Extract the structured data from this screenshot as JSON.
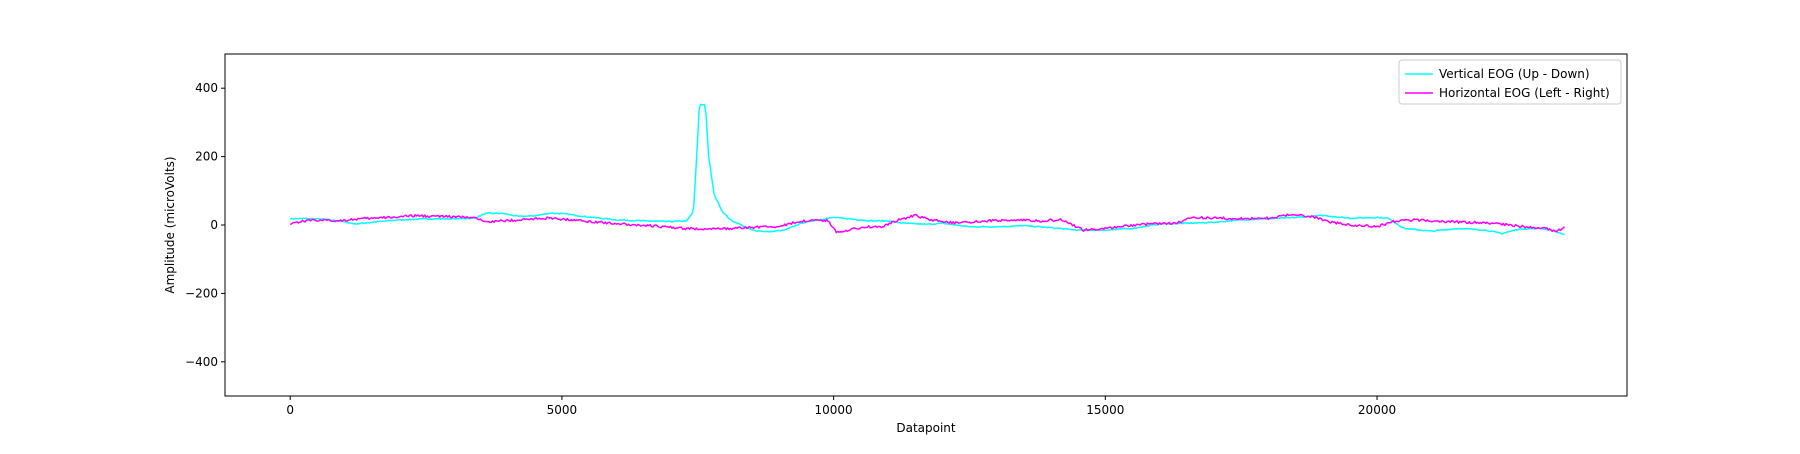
{
  "chart_data": {
    "type": "line",
    "title": "",
    "xlabel": "Datapoint",
    "ylabel": "Amplitude (microVolts)",
    "xlim": [
      -1200,
      24600
    ],
    "ylim": [
      -500,
      500
    ],
    "x_ticks": [
      0,
      5000,
      10000,
      15000,
      20000
    ],
    "y_ticks": [
      -400,
      -200,
      0,
      200,
      400
    ],
    "grid": false,
    "legend_position": "top-right",
    "series": [
      {
        "name": "Vertical EOG (Up - Down)",
        "color": "#00ffff",
        "noise": 1.5,
        "points": [
          [
            0,
            18
          ],
          [
            300,
            19
          ],
          [
            600,
            17
          ],
          [
            900,
            12
          ],
          [
            1200,
            3
          ],
          [
            1500,
            8
          ],
          [
            2000,
            15
          ],
          [
            2500,
            18
          ],
          [
            3000,
            18
          ],
          [
            3400,
            20
          ],
          [
            3600,
            34
          ],
          [
            3900,
            34
          ],
          [
            4200,
            25
          ],
          [
            4500,
            27
          ],
          [
            4800,
            35
          ],
          [
            5100,
            32
          ],
          [
            5400,
            25
          ],
          [
            6000,
            15
          ],
          [
            6500,
            12
          ],
          [
            7000,
            10
          ],
          [
            7300,
            12
          ],
          [
            7420,
            40
          ],
          [
            7480,
            200
          ],
          [
            7530,
            352
          ],
          [
            7640,
            352
          ],
          [
            7700,
            200
          ],
          [
            7800,
            90
          ],
          [
            7950,
            40
          ],
          [
            8100,
            15
          ],
          [
            8300,
            0
          ],
          [
            8500,
            -15
          ],
          [
            8800,
            -20
          ],
          [
            9100,
            -15
          ],
          [
            9400,
            5
          ],
          [
            9700,
            15
          ],
          [
            10000,
            22
          ],
          [
            10300,
            18
          ],
          [
            10700,
            12
          ],
          [
            11000,
            12
          ],
          [
            11300,
            5
          ],
          [
            11700,
            2
          ],
          [
            12000,
            5
          ],
          [
            12500,
            -5
          ],
          [
            13000,
            -5
          ],
          [
            13500,
            -2
          ],
          [
            14000,
            -8
          ],
          [
            14500,
            -15
          ],
          [
            15000,
            -15
          ],
          [
            15500,
            -10
          ],
          [
            16000,
            3
          ],
          [
            16500,
            5
          ],
          [
            17000,
            8
          ],
          [
            17500,
            15
          ],
          [
            18000,
            18
          ],
          [
            18500,
            22
          ],
          [
            19000,
            28
          ],
          [
            19500,
            20
          ],
          [
            20000,
            22
          ],
          [
            20200,
            20
          ],
          [
            20500,
            -10
          ],
          [
            21000,
            -18
          ],
          [
            21500,
            -10
          ],
          [
            22000,
            -15
          ],
          [
            22300,
            -25
          ],
          [
            22600,
            -12
          ],
          [
            23000,
            -10
          ],
          [
            23200,
            -15
          ],
          [
            23450,
            -28
          ]
        ]
      },
      {
        "name": "Horizontal EOG (Left - Right)",
        "color": "#ff00ff",
        "noise": 3.5,
        "points": [
          [
            0,
            5
          ],
          [
            400,
            15
          ],
          [
            800,
            12
          ],
          [
            1300,
            18
          ],
          [
            1800,
            22
          ],
          [
            2300,
            27
          ],
          [
            2800,
            25
          ],
          [
            3300,
            22
          ],
          [
            3700,
            10
          ],
          [
            4200,
            15
          ],
          [
            4700,
            20
          ],
          [
            5200,
            15
          ],
          [
            5700,
            8
          ],
          [
            6200,
            2
          ],
          [
            6700,
            -3
          ],
          [
            7200,
            -10
          ],
          [
            7700,
            -12
          ],
          [
            8200,
            -10
          ],
          [
            8700,
            -5
          ],
          [
            9000,
            -5
          ],
          [
            9300,
            8
          ],
          [
            9600,
            15
          ],
          [
            9900,
            12
          ],
          [
            10050,
            -20
          ],
          [
            10250,
            -15
          ],
          [
            10600,
            -5
          ],
          [
            10900,
            -5
          ],
          [
            11200,
            15
          ],
          [
            11500,
            28
          ],
          [
            11800,
            15
          ],
          [
            12300,
            5
          ],
          [
            12800,
            12
          ],
          [
            13300,
            15
          ],
          [
            13800,
            12
          ],
          [
            14200,
            15
          ],
          [
            14600,
            -15
          ],
          [
            15000,
            -10
          ],
          [
            15500,
            0
          ],
          [
            16000,
            5
          ],
          [
            16300,
            5
          ],
          [
            16600,
            22
          ],
          [
            17100,
            20
          ],
          [
            17600,
            18
          ],
          [
            18000,
            20
          ],
          [
            18400,
            30
          ],
          [
            18800,
            25
          ],
          [
            19100,
            10
          ],
          [
            19500,
            0
          ],
          [
            20000,
            -5
          ],
          [
            20300,
            10
          ],
          [
            20700,
            15
          ],
          [
            21200,
            10
          ],
          [
            21700,
            8
          ],
          [
            22200,
            5
          ],
          [
            22700,
            -5
          ],
          [
            23100,
            -10
          ],
          [
            23300,
            -20
          ],
          [
            23450,
            -5
          ]
        ]
      }
    ]
  }
}
